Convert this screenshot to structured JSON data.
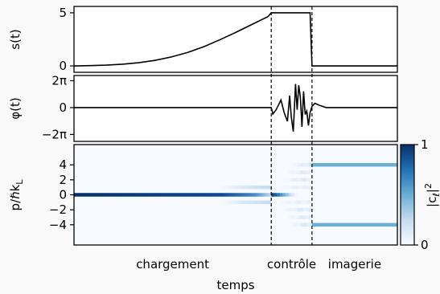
{
  "chart_data": [
    {
      "id": "s",
      "type": "line",
      "ylabel": "s(t)",
      "yticks": [
        {
          "value": 0,
          "label": "0"
        },
        {
          "value": 5,
          "label": "5"
        }
      ],
      "ylim": [
        -0.6,
        5.6
      ],
      "xlim": [
        0,
        1
      ],
      "series": [
        {
          "x": [
            0,
            0.05,
            0.1,
            0.15,
            0.2,
            0.25,
            0.3,
            0.35,
            0.4,
            0.45,
            0.5,
            0.55,
            0.6,
            0.61,
            0.7,
            0.73,
            0.736,
            0.8,
            0.9,
            1.0
          ],
          "y": [
            0,
            0.03,
            0.07,
            0.16,
            0.3,
            0.52,
            0.84,
            1.25,
            1.79,
            2.45,
            3.15,
            3.9,
            4.65,
            5.0,
            5.0,
            5.0,
            0.0,
            0.0,
            0.0,
            0.0
          ]
        }
      ]
    },
    {
      "id": "phi",
      "type": "line",
      "ylabel": "φ(t)",
      "yticks": [
        {
          "value": 6.283,
          "label": "2π"
        },
        {
          "value": 0,
          "label": "0"
        },
        {
          "value": -6.283,
          "label": "−2π"
        }
      ],
      "ylim": [
        -7.9,
        7.5
      ],
      "xlim": [
        0,
        1
      ],
      "series": [
        {
          "x": [
            0,
            0.61,
            0.615,
            0.625,
            0.64,
            0.65,
            0.66,
            0.667,
            0.672,
            0.678,
            0.685,
            0.69,
            0.695,
            0.7,
            0.705,
            0.71,
            0.715,
            0.72,
            0.725,
            0.73,
            0.736,
            0.745,
            0.76,
            0.78,
            0.8,
            1.0
          ],
          "y": [
            0,
            0,
            -1.5,
            -0.5,
            1.8,
            -1.2,
            -3.2,
            2.8,
            -2.2,
            -5.6,
            5.5,
            -0.5,
            5.2,
            2.4,
            -4.5,
            3.8,
            -1.6,
            -0.8,
            -4.2,
            -1.2,
            0.3,
            1.0,
            0.5,
            0,
            0,
            0
          ]
        }
      ]
    },
    {
      "id": "momentum",
      "type": "heatmap",
      "ylabel": "p/ℏk_L",
      "yticks": [
        {
          "value": 4,
          "label": "4"
        },
        {
          "value": 2,
          "label": "2"
        },
        {
          "value": 0,
          "label": "0"
        },
        {
          "value": -2,
          "label": "−2"
        },
        {
          "value": -4,
          "label": "−4"
        }
      ],
      "ylim": [
        -6.7,
        6.7
      ],
      "xlim": [
        0,
        1
      ],
      "population": {
        "loading": [
          {
            "p": 0,
            "c2": 1.0
          },
          {
            "p": 1,
            "c2": 0.04
          },
          {
            "p": -1,
            "c2": 0.04
          }
        ],
        "control_end": [
          {
            "p": 4,
            "c2": 0.2
          },
          {
            "p": 3,
            "c2": 0.15
          },
          {
            "p": 2,
            "c2": 0.15
          },
          {
            "p": 1,
            "c2": 0.1
          },
          {
            "p": -1,
            "c2": 0.1
          },
          {
            "p": -2,
            "c2": 0.15
          },
          {
            "p": -3,
            "c2": 0.15
          },
          {
            "p": -4,
            "c2": 0.2
          }
        ],
        "imaging": [
          {
            "p": 4,
            "c2": 0.5
          },
          {
            "p": -4,
            "c2": 0.5
          }
        ]
      },
      "colorbar": {
        "label": "|c_ℓ|²",
        "min": 0,
        "max": 1,
        "ticks": [
          {
            "value": 1,
            "label": "1"
          },
          {
            "value": 0,
            "label": "0"
          }
        ],
        "colormap": "Blues"
      }
    }
  ],
  "x_axis": {
    "xlabel": "temps",
    "phases": [
      {
        "label": "chargement",
        "x": 0.305
      },
      {
        "label": "contrôle",
        "x": 0.673
      },
      {
        "label": "imagerie",
        "x": 0.868
      }
    ],
    "dividers": [
      0.61,
      0.736
    ]
  },
  "colors": {
    "line": "#000000",
    "background": "#f7fbff",
    "accent": "#08306b"
  }
}
